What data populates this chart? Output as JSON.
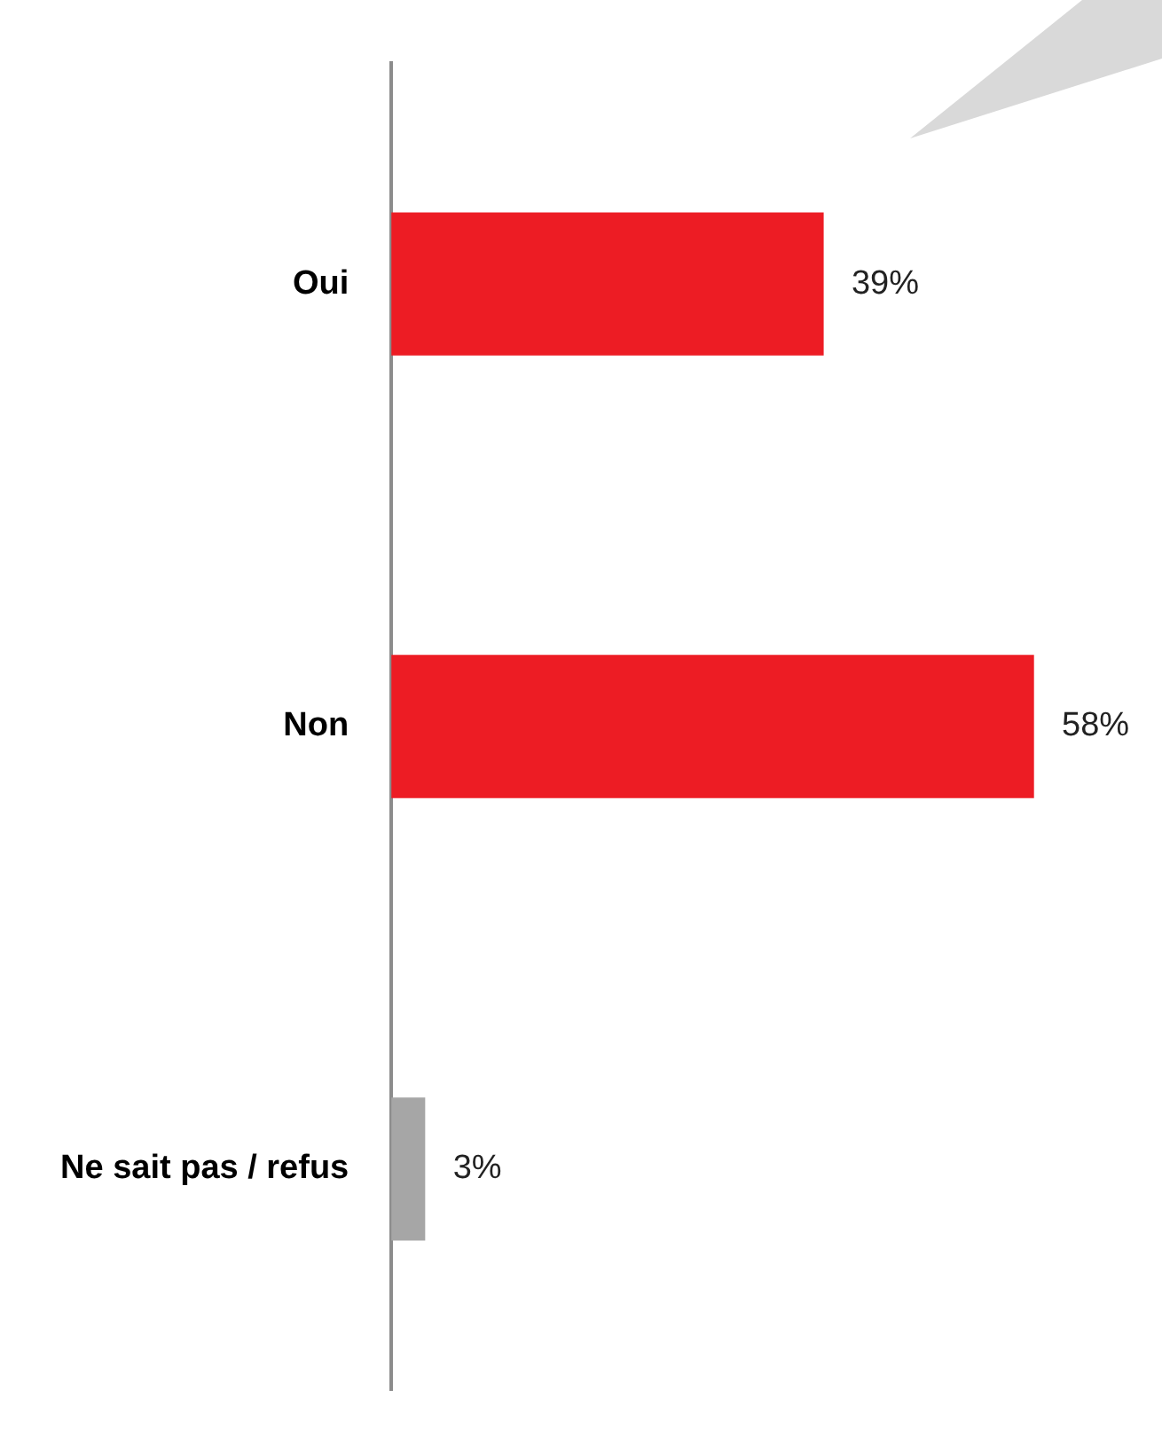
{
  "chart_data": {
    "type": "bar",
    "orientation": "horizontal",
    "categories": [
      "Oui",
      "Non",
      "Ne sait pas / refus"
    ],
    "values": [
      39,
      58,
      3
    ],
    "colors": [
      "#ed1c24",
      "#ed1c24",
      "#a6a6a6"
    ],
    "value_labels": [
      "39%",
      "58%",
      "3%"
    ]
  }
}
